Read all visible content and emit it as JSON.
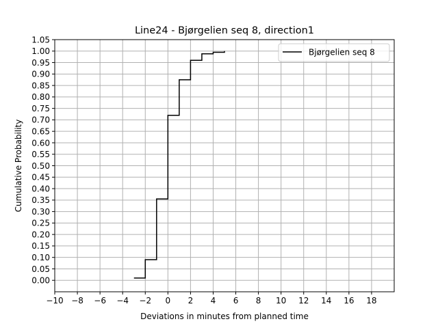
{
  "chart_data": {
    "type": "line",
    "step": "post",
    "title": "Line24 - Bjørgelien seq 8, direction1",
    "xlabel": "Deviations in minutes from planned time",
    "ylabel": "Cumulative Probability",
    "xlim": [
      -10,
      20
    ],
    "ylim": [
      -0.05,
      1.05
    ],
    "xticks": [
      -10,
      -8,
      -6,
      -4,
      -2,
      0,
      2,
      4,
      6,
      8,
      10,
      12,
      14,
      16,
      18
    ],
    "xtick_labels": [
      "−10",
      "−8",
      "−6",
      "−4",
      "−2",
      "0",
      "2",
      "4",
      "6",
      "8",
      "10",
      "12",
      "14",
      "16",
      "18"
    ],
    "yticks": [
      0.0,
      0.05,
      0.1,
      0.15,
      0.2,
      0.25,
      0.3,
      0.35,
      0.4,
      0.45,
      0.5,
      0.55,
      0.6,
      0.65,
      0.7,
      0.75,
      0.8,
      0.85,
      0.9,
      0.95,
      1.0,
      1.05
    ],
    "ytick_labels": [
      "0.00",
      "0.05",
      "0.10",
      "0.15",
      "0.20",
      "0.25",
      "0.30",
      "0.35",
      "0.40",
      "0.45",
      "0.50",
      "0.55",
      "0.60",
      "0.65",
      "0.70",
      "0.75",
      "0.80",
      "0.85",
      "0.90",
      "0.95",
      "1.00",
      "1.05"
    ],
    "grid": true,
    "legend_position": "top-right",
    "series": [
      {
        "name": "Bjørgelien seq 8",
        "color": "#000000",
        "x": [
          -3,
          -2,
          -1,
          0,
          1,
          2,
          3,
          4,
          5
        ],
        "y": [
          0.01,
          0.09,
          0.355,
          0.72,
          0.875,
          0.96,
          0.988,
          0.995,
          1.0
        ]
      }
    ]
  }
}
